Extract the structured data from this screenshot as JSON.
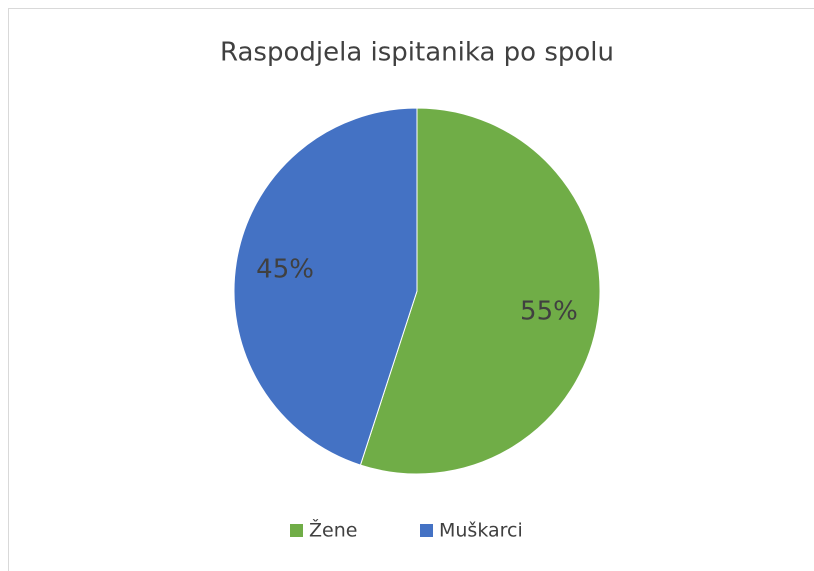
{
  "chart_data": {
    "type": "pie",
    "title": "Raspodjela ispitanika po spolu",
    "categories": [
      "Žene",
      "Muškarci"
    ],
    "values": [
      55,
      45
    ],
    "value_labels": [
      "55%",
      "45%"
    ],
    "colors": [
      "#70ad47",
      "#4472c4"
    ],
    "legend": "bottom"
  }
}
